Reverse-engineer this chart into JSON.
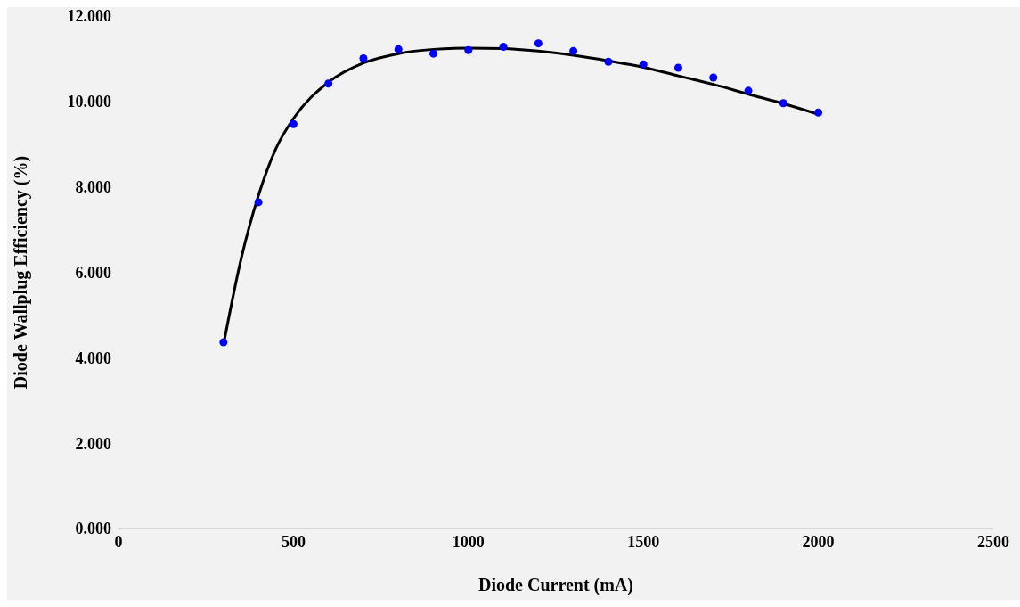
{
  "chart_data": {
    "type": "scatter",
    "xlabel": "Diode Current (mA)",
    "ylabel": "Diode Wallplug Efficiency (%)",
    "xlim": [
      0,
      2500
    ],
    "xticks": [
      0,
      500,
      1000,
      1500,
      2000,
      2500
    ],
    "ylim": [
      0,
      12
    ],
    "yticks": [
      {
        "value": 0,
        "label": "0.000"
      },
      {
        "value": 2,
        "label": "2.000"
      },
      {
        "value": 4,
        "label": "4.000"
      },
      {
        "value": 6,
        "label": "6.000"
      },
      {
        "value": 8,
        "label": "8.000"
      },
      {
        "value": 10,
        "label": "10.000"
      },
      {
        "value": 12,
        "label": "12.000"
      }
    ],
    "grid": false,
    "series": [
      {
        "type": "line",
        "color": "#000000",
        "marker": "none",
        "line_style": "solid",
        "x": [
          300,
          350,
          400,
          450,
          500,
          600,
          700,
          800,
          900,
          1000,
          1100,
          1200,
          1300,
          1400,
          1500,
          1600,
          1700,
          1800,
          1900,
          2000
        ],
        "values": [
          4.3,
          6.3,
          7.8,
          8.9,
          9.6,
          10.45,
          10.9,
          11.12,
          11.22,
          11.25,
          11.24,
          11.18,
          11.08,
          10.95,
          10.8,
          10.6,
          10.4,
          10.17,
          9.95,
          9.7
        ]
      },
      {
        "color": "#0000ff",
        "marker": "circle",
        "x": [
          300,
          400,
          500,
          600,
          700,
          800,
          900,
          1000,
          1100,
          1200,
          1300,
          1400,
          1500,
          1600,
          1700,
          1800,
          1900,
          2000
        ],
        "values": [
          4.36,
          7.64,
          9.47,
          10.42,
          11.01,
          11.22,
          11.12,
          11.2,
          11.28,
          11.36,
          11.18,
          10.93,
          10.87,
          10.79,
          10.56,
          10.25,
          9.96,
          9.74
        ]
      }
    ]
  }
}
